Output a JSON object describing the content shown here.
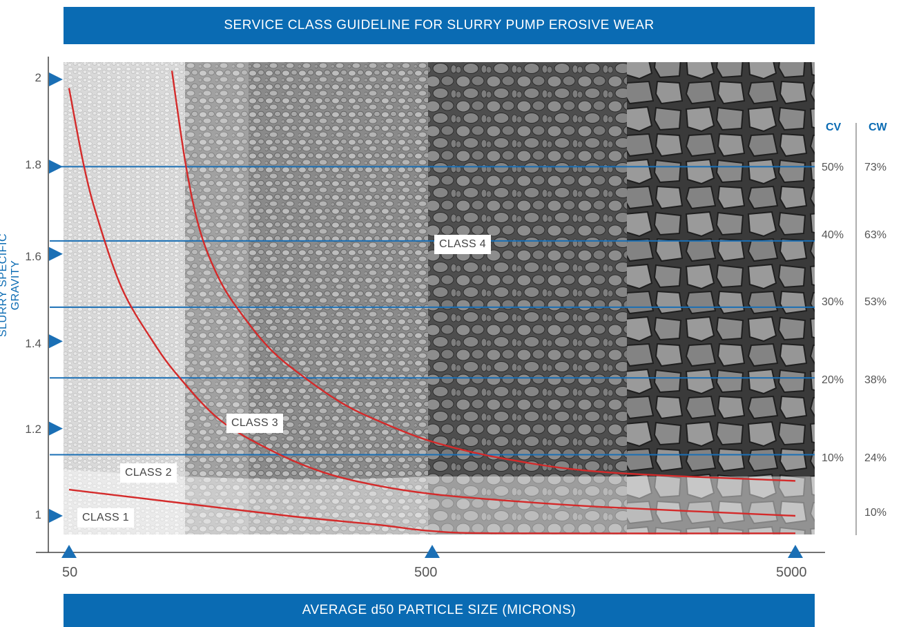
{
  "chart_data": {
    "type": "line",
    "title": "SERVICE CLASS GUIDELINE FOR SLURRY PUMP EROSIVE WEAR",
    "xlabel": "AVERAGE d50 PARTICLE SIZE (MICRONS)",
    "ylabel": "SLURRY SPECIFIC GRAVITY",
    "x_scale": "log",
    "xlim": [
      50,
      5000
    ],
    "ylim": [
      0.96,
      2.02
    ],
    "x_ticks": [
      {
        "value": 50,
        "label": "50"
      },
      {
        "value": 500,
        "label": "500"
      },
      {
        "value": 5000,
        "label": "5000"
      }
    ],
    "y_ticks": [
      {
        "value": 1.0,
        "label": "1"
      },
      {
        "value": 1.2,
        "label": "1.2"
      },
      {
        "value": 1.4,
        "label": "1.4"
      },
      {
        "value": 1.6,
        "label": "1.6"
      },
      {
        "value": 1.8,
        "label": "1.8"
      },
      {
        "value": 2.0,
        "label": "2"
      }
    ],
    "series": [
      {
        "x": [
          50,
          100,
          200,
          350,
          500,
          800,
          5000
        ],
        "y": [
          1.06,
          1.03,
          1.0,
          0.98,
          0.965,
          0.96,
          0.96
        ]
      },
      {
        "x": [
          50,
          55,
          60,
          70,
          85,
          100,
          130,
          180,
          250,
          350,
          500,
          800,
          1500,
          5000
        ],
        "y": [
          1.98,
          1.8,
          1.68,
          1.52,
          1.4,
          1.32,
          1.22,
          1.15,
          1.1,
          1.07,
          1.05,
          1.035,
          1.02,
          1.0
        ]
      },
      {
        "x": [
          96,
          105,
          115,
          130,
          150,
          180,
          220,
          280,
          350,
          500,
          800,
          1500,
          5000
        ],
        "y": [
          2.02,
          1.8,
          1.65,
          1.54,
          1.46,
          1.38,
          1.32,
          1.26,
          1.22,
          1.17,
          1.13,
          1.1,
          1.08
        ]
      }
    ],
    "concentration_lines": [
      {
        "sg": 1.8,
        "cv": "50%",
        "cw": "73%"
      },
      {
        "sg": 1.63,
        "cv": "40%",
        "cw": "63%"
      },
      {
        "sg": 1.478,
        "cv": "30%",
        "cw": "53%"
      },
      {
        "sg": 1.316,
        "cv": "20%",
        "cw": "38%"
      },
      {
        "sg": 1.14,
        "cv": "10%",
        "cw": "24%"
      }
    ],
    "bottom_cw": "10%",
    "cv_header": "CV",
    "cw_header": "CW",
    "class_labels": [
      "CLASS 1",
      "CLASS 2",
      "CLASS 3",
      "CLASS 4"
    ],
    "colors": {
      "curve": "#d42a2a",
      "line": "#1a6fb5",
      "banner": "#0a6bb3",
      "tick": "#1a6fb5"
    }
  }
}
